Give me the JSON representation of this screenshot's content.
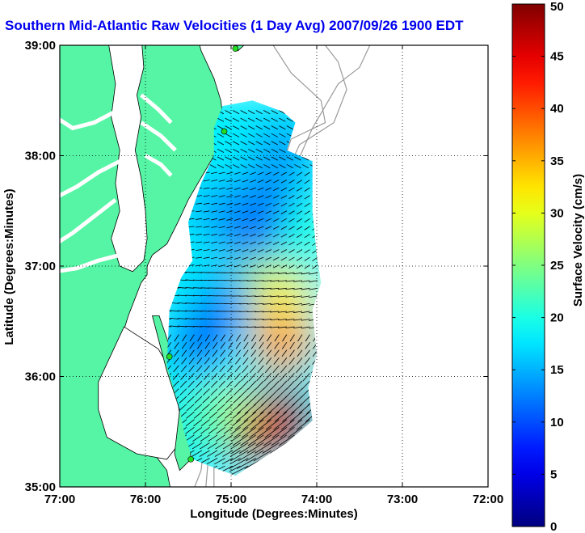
{
  "chart_data": {
    "type": "heatmap",
    "title": "Southern Mid-Atlantic Raw Velocities (1 Day Avg) 2007/09/26 1900 EDT",
    "xlabel": "Longitude (Degrees:Minutes)",
    "ylabel": "Latitude (Degrees:Minutes)",
    "colorbar_label": "Surface Velocity (cm/s)",
    "x_ticks": [
      "77:00",
      "76:00",
      "75:00",
      "74:00",
      "73:00",
      "72:00"
    ],
    "y_ticks": [
      "39:00",
      "38:00",
      "37:00",
      "36:00",
      "35:00"
    ],
    "colorbar_ticks": [
      "50",
      "45",
      "40",
      "35",
      "30",
      "25",
      "20",
      "15",
      "10",
      "5",
      "0"
    ],
    "xlim": [
      -77,
      -72
    ],
    "ylim": [
      35,
      39
    ],
    "clim": [
      0,
      50
    ],
    "grid": true,
    "colormap": "jet",
    "land_color": "#55f5a5",
    "title_color": "#0000ee",
    "field_samples": [
      {
        "lon": -74.85,
        "lat": 38.2,
        "speed": 18
      },
      {
        "lon": -74.6,
        "lat": 37.6,
        "speed": 12
      },
      {
        "lon": -74.8,
        "lat": 37.3,
        "speed": 8
      },
      {
        "lon": -75.1,
        "lat": 37.5,
        "speed": 14
      },
      {
        "lon": -74.4,
        "lat": 38.05,
        "speed": 14
      },
      {
        "lon": -74.1,
        "lat": 37.3,
        "speed": 20
      },
      {
        "lon": -74.7,
        "lat": 36.85,
        "speed": 24
      },
      {
        "lon": -74.4,
        "lat": 36.7,
        "speed": 32
      },
      {
        "lon": -75.1,
        "lat": 36.7,
        "speed": 14
      },
      {
        "lon": -75.3,
        "lat": 36.3,
        "speed": 8
      },
      {
        "lon": -74.9,
        "lat": 36.05,
        "speed": 18
      },
      {
        "lon": -74.4,
        "lat": 36.3,
        "speed": 36
      },
      {
        "lon": -74.4,
        "lat": 35.6,
        "speed": 48
      },
      {
        "lon": -74.7,
        "lat": 35.5,
        "speed": 46
      },
      {
        "lon": -75.1,
        "lat": 35.65,
        "speed": 30
      },
      {
        "lon": -75.3,
        "lat": 35.6,
        "speed": 22
      }
    ],
    "station_markers": [
      {
        "lon": -74.95,
        "lat": 38.97
      },
      {
        "lon": -75.08,
        "lat": 38.22
      },
      {
        "lon": -75.72,
        "lat": 36.18
      },
      {
        "lon": -75.47,
        "lat": 35.25
      }
    ]
  }
}
